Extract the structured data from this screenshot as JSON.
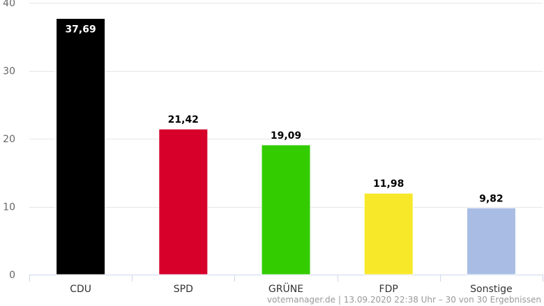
{
  "chart_data": {
    "type": "bar",
    "title": "",
    "xlabel": "",
    "ylabel": "",
    "categories": [
      "CDU",
      "SPD",
      "GRÜNE",
      "FDP",
      "Sonstige"
    ],
    "values": [
      37.69,
      21.42,
      19.09,
      11.98,
      9.82
    ],
    "value_labels": [
      "37,69",
      "21,42",
      "19,09",
      "11,98",
      "9,82"
    ],
    "colors": [
      "#000000",
      "#d6002b",
      "#33cc00",
      "#f8e82a",
      "#a9bde4"
    ],
    "value_label_colors": [
      "#ffffff",
      "#000000",
      "#000000",
      "#000000",
      "#000000"
    ],
    "ylim": [
      0,
      40
    ],
    "yticks": [
      0,
      10,
      20,
      30,
      40
    ],
    "grid": true,
    "legend": "none"
  },
  "credit": {
    "source": "votemanager.de",
    "separator": " | ",
    "timestamp": "13.09.2020 22:38 Uhr – 30 von 30 Ergebnissen"
  }
}
